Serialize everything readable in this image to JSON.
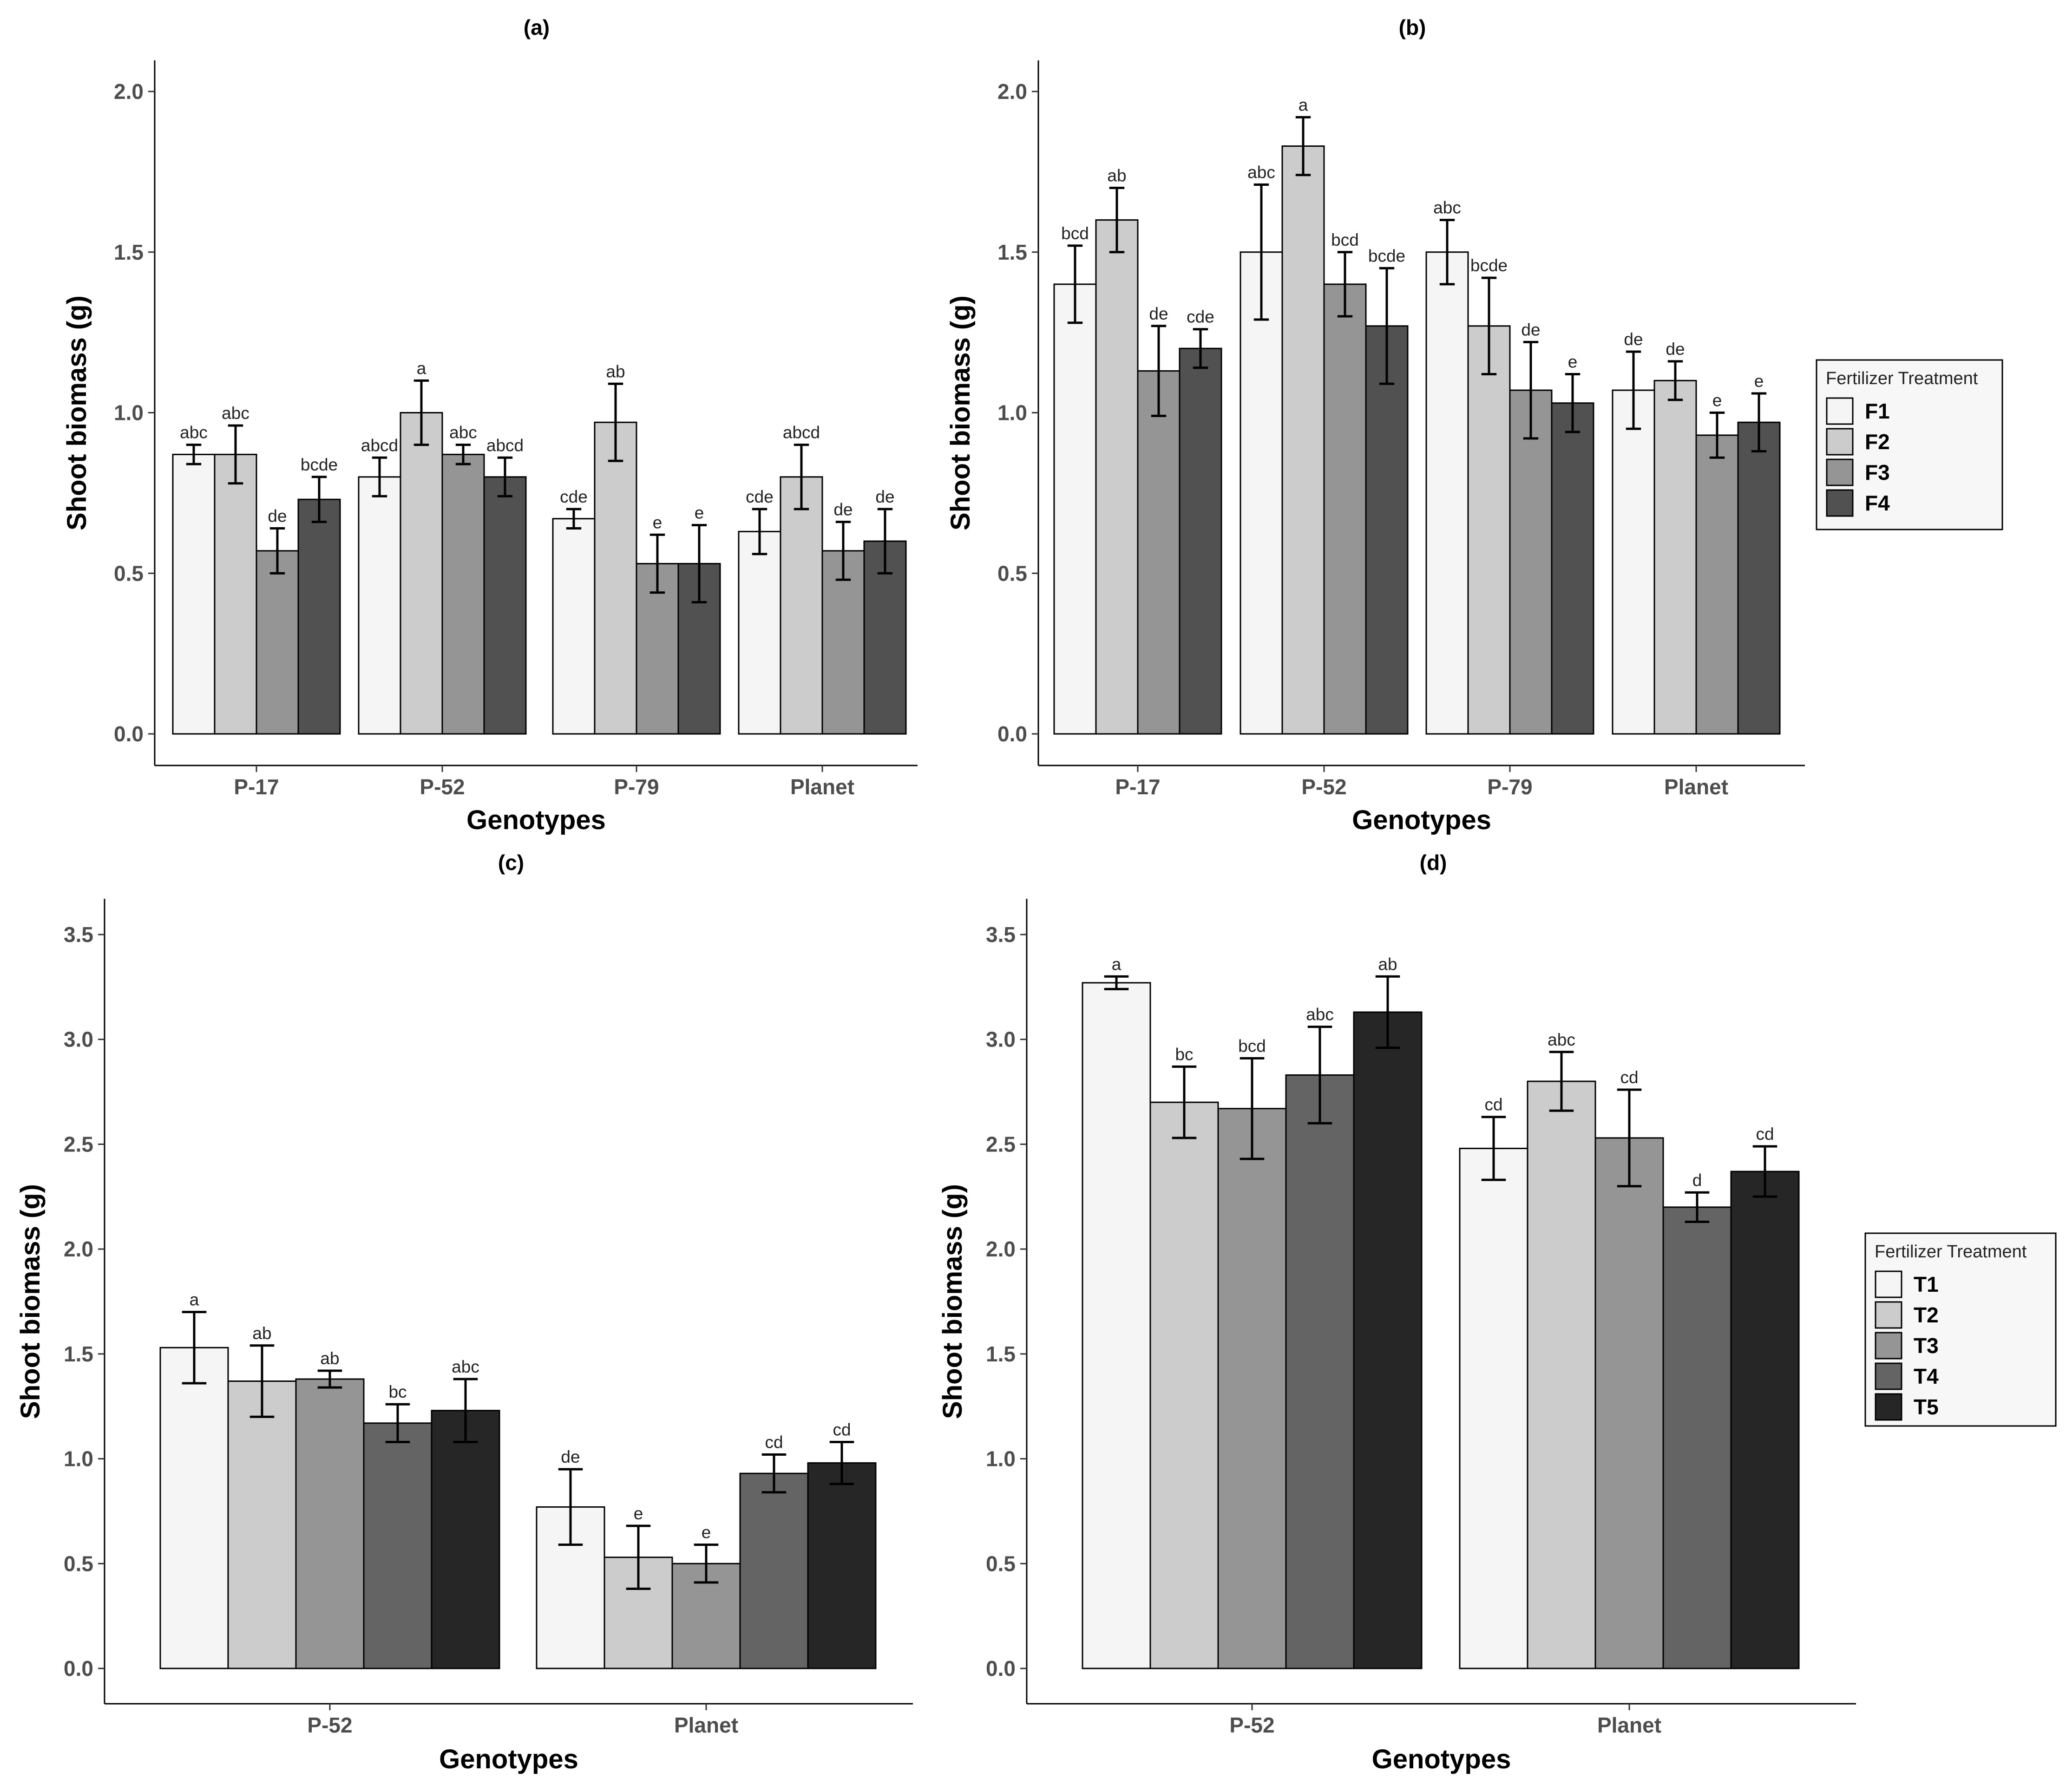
{
  "chart_data": [
    {
      "panel": "(a)",
      "type": "bar",
      "title": "(a)",
      "xlabel": "Genotypes",
      "ylabel": "Shoot biomass (g)",
      "ylim": [
        0,
        2.0
      ],
      "yticks": [
        "0.0",
        "0.5",
        "1.0",
        "1.5",
        "2.0"
      ],
      "categories": [
        "P-17",
        "P-52",
        "P-79",
        "Planet"
      ],
      "series": [
        {
          "name": "F1",
          "color": "#f5f5f5",
          "values": [
            0.87,
            0.8,
            0.67,
            0.63
          ],
          "errors": [
            0.03,
            0.06,
            0.03,
            0.07
          ],
          "labels": [
            "abc",
            "abcd",
            "cde",
            "cde"
          ]
        },
        {
          "name": "F2",
          "color": "#cccccc",
          "values": [
            0.87,
            1.0,
            0.97,
            0.8
          ],
          "errors": [
            0.09,
            0.1,
            0.12,
            0.1
          ],
          "labels": [
            "abc",
            "a",
            "ab",
            "abcd"
          ]
        },
        {
          "name": "F3",
          "color": "#959595",
          "values": [
            0.57,
            0.87,
            0.53,
            0.57
          ],
          "errors": [
            0.07,
            0.03,
            0.09,
            0.09
          ],
          "labels": [
            "de",
            "abc",
            "e",
            "de"
          ]
        },
        {
          "name": "F4",
          "color": "#515151",
          "values": [
            0.73,
            0.8,
            0.53,
            0.6
          ],
          "errors": [
            0.07,
            0.06,
            0.12,
            0.1
          ],
          "labels": [
            "bcde",
            "abcd",
            "e",
            "de"
          ]
        }
      ]
    },
    {
      "panel": "(b)",
      "type": "bar",
      "title": "(b)",
      "xlabel": "Genotypes",
      "ylabel": "Shoot biomass (g)",
      "ylim": [
        0,
        2.0
      ],
      "yticks": [
        "0.0",
        "0.5",
        "1.0",
        "1.5",
        "2.0"
      ],
      "categories": [
        "P-17",
        "P-52",
        "P-79",
        "Planet"
      ],
      "series": [
        {
          "name": "F1",
          "color": "#f5f5f5",
          "values": [
            1.4,
            1.5,
            1.5,
            1.07
          ],
          "errors": [
            0.12,
            0.21,
            0.1,
            0.12
          ],
          "labels": [
            "bcd",
            "abc",
            "abc",
            "de"
          ]
        },
        {
          "name": "F2",
          "color": "#cccccc",
          "values": [
            1.6,
            1.83,
            1.27,
            1.1
          ],
          "errors": [
            0.1,
            0.09,
            0.15,
            0.06
          ],
          "labels": [
            "ab",
            "a",
            "bcde",
            "de"
          ]
        },
        {
          "name": "F3",
          "color": "#959595",
          "values": [
            1.13,
            1.4,
            1.07,
            0.93
          ],
          "errors": [
            0.14,
            0.1,
            0.15,
            0.07
          ],
          "labels": [
            "de",
            "bcd",
            "de",
            "e"
          ]
        },
        {
          "name": "F4",
          "color": "#515151",
          "values": [
            1.2,
            1.27,
            1.03,
            0.97
          ],
          "errors": [
            0.06,
            0.18,
            0.09,
            0.09
          ],
          "labels": [
            "cde",
            "bcde",
            "e",
            "e"
          ]
        }
      ],
      "legend": {
        "title": "Fertilizer Treatment",
        "items": [
          "F1",
          "F2",
          "F3",
          "F4"
        ]
      }
    },
    {
      "panel": "(c)",
      "type": "bar",
      "title": "(c)",
      "xlabel": "Genotypes",
      "ylabel": "Shoot biomass (g)",
      "ylim": [
        0,
        3.5
      ],
      "yticks": [
        "0.0",
        "0.5",
        "1.0",
        "1.5",
        "2.0",
        "2.5",
        "3.0",
        "3.5"
      ],
      "categories": [
        "P-52",
        "Planet"
      ],
      "series": [
        {
          "name": "T1",
          "color": "#f5f5f5",
          "values": [
            1.53,
            0.77
          ],
          "errors": [
            0.17,
            0.18
          ],
          "labels": [
            "a",
            "de"
          ]
        },
        {
          "name": "T2",
          "color": "#cccccc",
          "values": [
            1.37,
            0.53
          ],
          "errors": [
            0.17,
            0.15
          ],
          "labels": [
            "ab",
            "e"
          ]
        },
        {
          "name": "T3",
          "color": "#959595",
          "values": [
            1.38,
            0.5
          ],
          "errors": [
            0.04,
            0.09
          ],
          "labels": [
            "ab",
            "e"
          ]
        },
        {
          "name": "T4",
          "color": "#646464",
          "values": [
            1.17,
            0.93
          ],
          "errors": [
            0.09,
            0.09
          ],
          "labels": [
            "bc",
            "cd"
          ]
        },
        {
          "name": "T5",
          "color": "#262626",
          "values": [
            1.23,
            0.98
          ],
          "errors": [
            0.15,
            0.1
          ],
          "labels": [
            "abc",
            "cd"
          ]
        }
      ]
    },
    {
      "panel": "(d)",
      "type": "bar",
      "title": "(d)",
      "xlabel": "Genotypes",
      "ylabel": "Shoot biomass (g)",
      "ylim": [
        0,
        3.5
      ],
      "yticks": [
        "0.0",
        "0.5",
        "1.0",
        "1.5",
        "2.0",
        "2.5",
        "3.0",
        "3.5"
      ],
      "categories": [
        "P-52",
        "Planet"
      ],
      "series": [
        {
          "name": "T1",
          "color": "#f5f5f5",
          "values": [
            3.27,
            2.48
          ],
          "errors": [
            0.03,
            0.15
          ],
          "labels": [
            "a",
            "cd"
          ]
        },
        {
          "name": "T2",
          "color": "#cccccc",
          "values": [
            2.7,
            2.8
          ],
          "errors": [
            0.17,
            0.14
          ],
          "labels": [
            "bc",
            "abc"
          ]
        },
        {
          "name": "T3",
          "color": "#959595",
          "values": [
            2.67,
            2.53
          ],
          "errors": [
            0.24,
            0.23
          ],
          "labels": [
            "bcd",
            "cd"
          ]
        },
        {
          "name": "T4",
          "color": "#646464",
          "values": [
            2.83,
            2.2
          ],
          "errors": [
            0.23,
            0.07
          ],
          "labels": [
            "abc",
            "d"
          ]
        },
        {
          "name": "T5",
          "color": "#262626",
          "values": [
            3.13,
            2.37
          ],
          "errors": [
            0.17,
            0.12
          ],
          "labels": [
            "ab",
            "cd"
          ]
        }
      ],
      "legend": {
        "title": "Fertilizer Treatment",
        "items": [
          "T1",
          "T2",
          "T3",
          "T4",
          "T5"
        ]
      }
    }
  ]
}
